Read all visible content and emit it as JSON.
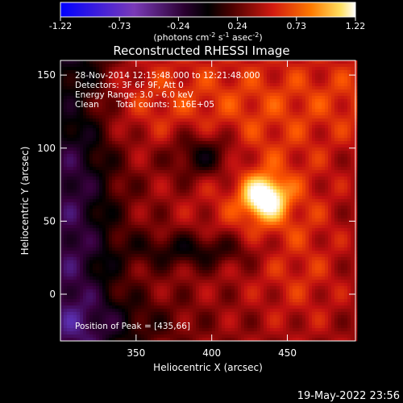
{
  "colorbar": {
    "ticks": [
      "-1.22",
      "-0.73",
      "-0.24",
      "0.24",
      "0.73",
      "1.22"
    ],
    "units_main": "(photons cm",
    "units_exp1": "-2",
    "units_mid": " s",
    "units_exp2": "-1",
    "units_tail": " asec",
    "units_exp3": "-2",
    "units_close": ")"
  },
  "title": "Reconstructed RHESSI Image",
  "annotations": {
    "time_range": "28-Nov-2014 12:15:48.000 to 12:21:48.000",
    "detectors": "Detectors: 3F 6F 9F, Att 0",
    "energy": "Energy Range: 3.0 - 6.0 keV",
    "method": "Clean",
    "counts": "Total counts: 1.16E+05",
    "peak": "Position of Peak = [435,66]"
  },
  "footer_timestamp": "19-May-2022 23:56",
  "chart_data": {
    "type": "heatmap",
    "title": "Reconstructed RHESSI Image",
    "xlabel": "Heliocentric X (arcsec)",
    "ylabel": "Heliocentric Y (arcsec)",
    "xlim": [
      300,
      495
    ],
    "ylim": [
      -32,
      160
    ],
    "x_ticks": [
      350,
      400,
      450
    ],
    "y_ticks": [
      0,
      50,
      100,
      150
    ],
    "color_range": [
      -1.22,
      1.22
    ],
    "colormap": [
      "#0000ff",
      "#5b2fb0",
      "#3a0040",
      "#000000",
      "#5a0000",
      "#c01010",
      "#ff5a00",
      "#ffd040",
      "#ffffff"
    ],
    "peak": [
      435,
      66
    ],
    "peak_value": 1.22
  }
}
